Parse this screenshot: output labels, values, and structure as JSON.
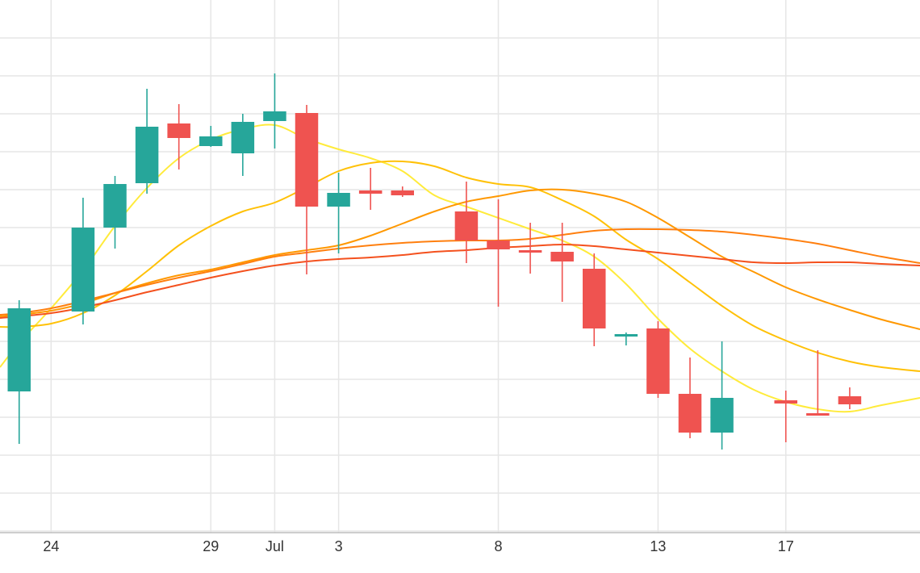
{
  "chart_data": {
    "type": "candlestick",
    "x_ticks": [
      {
        "day": 24,
        "label": "24"
      },
      {
        "day": 29,
        "label": "29"
      },
      {
        "day": 31,
        "label": "Jul"
      },
      {
        "day": 33,
        "label": "3"
      },
      {
        "day": 38,
        "label": "8"
      },
      {
        "day": 43,
        "label": "13"
      },
      {
        "day": 47,
        "label": "17"
      }
    ],
    "x_range": [
      22.4,
      51.2
    ],
    "y_range": [
      0,
      660
    ],
    "grid": true,
    "colors": {
      "up": "#26a69a",
      "down": "#ef5350",
      "grid": "#e6e6e6",
      "baseline": "#bdbdbd",
      "text": "#333333"
    },
    "candles": [
      {
        "day": 23,
        "open": 485,
        "high": 550,
        "low": 372,
        "close": 382
      },
      {
        "day": 25,
        "open": 386,
        "high": 402,
        "low": 245,
        "close": 282
      },
      {
        "day": 26,
        "open": 282,
        "high": 308,
        "low": 218,
        "close": 228
      },
      {
        "day": 27,
        "open": 227,
        "high": 240,
        "low": 110,
        "close": 157
      },
      {
        "day": 28,
        "open": 153,
        "high": 210,
        "low": 129,
        "close": 171
      },
      {
        "day": 29,
        "open": 181,
        "high": 182,
        "low": 156,
        "close": 169
      },
      {
        "day": 30,
        "open": 190,
        "high": 218,
        "low": 141,
        "close": 151
      },
      {
        "day": 31,
        "open": 150,
        "high": 184,
        "low": 91,
        "close": 138
      },
      {
        "day": 32,
        "open": 140,
        "high": 340,
        "low": 130,
        "close": 256
      },
      {
        "day": 33,
        "open": 256,
        "high": 314,
        "low": 214,
        "close": 239
      },
      {
        "day": 34,
        "open": 236,
        "high": 260,
        "low": 208,
        "close": 240
      },
      {
        "day": 35,
        "open": 236,
        "high": 244,
        "low": 231,
        "close": 242
      },
      {
        "day": 37,
        "open": 262,
        "high": 326,
        "low": 225,
        "close": 298
      },
      {
        "day": 38,
        "open": 298,
        "high": 380,
        "low": 247,
        "close": 309
      },
      {
        "day": 39,
        "open": 310,
        "high": 339,
        "low": 276,
        "close": 311
      },
      {
        "day": 40,
        "open": 312,
        "high": 374,
        "low": 276,
        "close": 324
      },
      {
        "day": 41,
        "open": 333,
        "high": 429,
        "low": 314,
        "close": 407
      },
      {
        "day": 42,
        "open": 415,
        "high": 428,
        "low": 412,
        "close": 414
      },
      {
        "day": 43,
        "open": 407,
        "high": 493,
        "low": 398,
        "close": 488
      },
      {
        "day": 44,
        "open": 488,
        "high": 543,
        "low": 443,
        "close": 536
      },
      {
        "day": 45,
        "open": 536,
        "high": 557,
        "low": 423,
        "close": 493
      },
      {
        "day": 47,
        "open": 496,
        "high": 548,
        "low": 484,
        "close": 500
      },
      {
        "day": 48,
        "open": 512,
        "high": 512,
        "low": 434,
        "close": 512
      },
      {
        "day": 49,
        "open": 491,
        "high": 507,
        "low": 480,
        "close": 501
      }
    ],
    "series": [
      {
        "color": "#ffeb3b",
        "points": [
          [
            22.4,
            455
          ],
          [
            23,
            425
          ],
          [
            24,
            382
          ],
          [
            25,
            335
          ],
          [
            26,
            280
          ],
          [
            27,
            233
          ],
          [
            28,
            196
          ],
          [
            29,
            173
          ],
          [
            30,
            160
          ],
          [
            31,
            155
          ],
          [
            32,
            172
          ],
          [
            33,
            185
          ],
          [
            34,
            196
          ],
          [
            35,
            212
          ],
          [
            36,
            242
          ],
          [
            37,
            256
          ],
          [
            38,
            270
          ],
          [
            39,
            284
          ],
          [
            40,
            298
          ],
          [
            41,
            318
          ],
          [
            42,
            352
          ],
          [
            43,
            395
          ],
          [
            44,
            432
          ],
          [
            45,
            460
          ],
          [
            46,
            483
          ],
          [
            47,
            498
          ],
          [
            48,
            507
          ],
          [
            49,
            510
          ],
          [
            50,
            502
          ],
          [
            51.2,
            493
          ]
        ]
      },
      {
        "color": "#ffc107",
        "points": [
          [
            22.4,
            405
          ],
          [
            23,
            405
          ],
          [
            24,
            401
          ],
          [
            25,
            388
          ],
          [
            26,
            366
          ],
          [
            27,
            336
          ],
          [
            28,
            304
          ],
          [
            29,
            280
          ],
          [
            30,
            262
          ],
          [
            31,
            251
          ],
          [
            32,
            232
          ],
          [
            33,
            212
          ],
          [
            34,
            202
          ],
          [
            35,
            200
          ],
          [
            36,
            206
          ],
          [
            37,
            220
          ],
          [
            38,
            228
          ],
          [
            39,
            232
          ],
          [
            40,
            248
          ],
          [
            41,
            268
          ],
          [
            42,
            297
          ],
          [
            43,
            321
          ],
          [
            44,
            350
          ],
          [
            45,
            379
          ],
          [
            46,
            404
          ],
          [
            47,
            422
          ],
          [
            48,
            437
          ],
          [
            49,
            448
          ],
          [
            50,
            455
          ],
          [
            51.2,
            460
          ]
        ]
      },
      {
        "color": "#ff9800",
        "points": [
          [
            22.4,
            392
          ],
          [
            23,
            390
          ],
          [
            24,
            385
          ],
          [
            25,
            376
          ],
          [
            26,
            363
          ],
          [
            27,
            351
          ],
          [
            28,
            341
          ],
          [
            29,
            334
          ],
          [
            30,
            325
          ],
          [
            31,
            316
          ],
          [
            32,
            310
          ],
          [
            33,
            304
          ],
          [
            34,
            292
          ],
          [
            35,
            277
          ],
          [
            36,
            262
          ],
          [
            37,
            250
          ],
          [
            38,
            243
          ],
          [
            39,
            236
          ],
          [
            40,
            235
          ],
          [
            41,
            240
          ],
          [
            42,
            250
          ],
          [
            43,
            270
          ],
          [
            44,
            294
          ],
          [
            45,
            318
          ],
          [
            46,
            337
          ],
          [
            47,
            356
          ],
          [
            48,
            371
          ],
          [
            49,
            384
          ],
          [
            50,
            396
          ],
          [
            51.2,
            408
          ]
        ]
      },
      {
        "color": "#ff7f0e",
        "points": [
          [
            22.4,
            390
          ],
          [
            23,
            388
          ],
          [
            24,
            382
          ],
          [
            25,
            373
          ],
          [
            26,
            363
          ],
          [
            27,
            353
          ],
          [
            28,
            344
          ],
          [
            29,
            336
          ],
          [
            30,
            327
          ],
          [
            31,
            318
          ],
          [
            32,
            313
          ],
          [
            33,
            308
          ],
          [
            34,
            304
          ],
          [
            35,
            301
          ],
          [
            36,
            299
          ],
          [
            37,
            298
          ],
          [
            38,
            298
          ],
          [
            39,
            296
          ],
          [
            40,
            291
          ],
          [
            41,
            286
          ],
          [
            42,
            284
          ],
          [
            43,
            284
          ],
          [
            44,
            285
          ],
          [
            45,
            287
          ],
          [
            46,
            291
          ],
          [
            47,
            296
          ],
          [
            48,
            302
          ],
          [
            49,
            310
          ],
          [
            50,
            318
          ],
          [
            51.2,
            326
          ]
        ]
      },
      {
        "color": "#f4511e",
        "points": [
          [
            22.4,
            394
          ],
          [
            23,
            392
          ],
          [
            24,
            388
          ],
          [
            25,
            381
          ],
          [
            26,
            372
          ],
          [
            27,
            362
          ],
          [
            28,
            353
          ],
          [
            29,
            344
          ],
          [
            30,
            336
          ],
          [
            31,
            329
          ],
          [
            32,
            324
          ],
          [
            33,
            321
          ],
          [
            34,
            319
          ],
          [
            35,
            316
          ],
          [
            36,
            312
          ],
          [
            37,
            310
          ],
          [
            38,
            307
          ],
          [
            39,
            305
          ],
          [
            40,
            303
          ],
          [
            41,
            305
          ],
          [
            42,
            309
          ],
          [
            43,
            313
          ],
          [
            44,
            317
          ],
          [
            45,
            321
          ],
          [
            46,
            325
          ],
          [
            47,
            326
          ],
          [
            48,
            325
          ],
          [
            49,
            325
          ],
          [
            50,
            327
          ],
          [
            51.2,
            329
          ]
        ]
      }
    ]
  }
}
